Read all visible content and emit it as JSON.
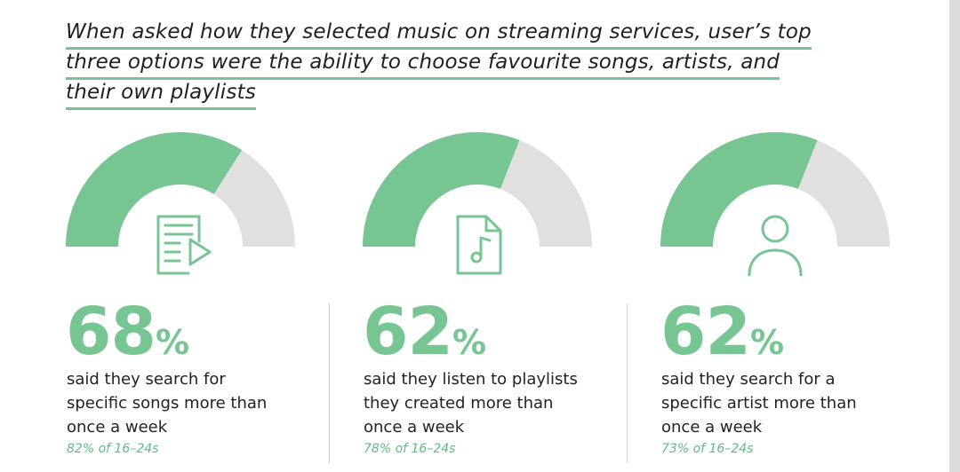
{
  "headline": {
    "lines": [
      "When asked how they selected music on streaming services, user’s top",
      "three options were the ability to choose favourite songs, artists, and",
      "their own playlists"
    ]
  },
  "colors": {
    "accent": "#78c594",
    "track": "#e2dfdf"
  },
  "chart_data": {
    "type": "gauge",
    "series": [
      {
        "value": 68,
        "value_label": "68",
        "unit": "%",
        "description": [
          "said they search for",
          "specific songs more than",
          "once a week"
        ],
        "subtext": "82% of 16–24s",
        "icon": "document-play-icon"
      },
      {
        "value": 62,
        "value_label": "62",
        "unit": "%",
        "description": [
          "said they listen to playlists",
          "they created more than",
          "once a week"
        ],
        "subtext": "78% of 16–24s",
        "icon": "music-file-icon"
      },
      {
        "value": 62,
        "value_label": "62",
        "unit": "%",
        "description": [
          "said they search for a",
          "specific artist more than",
          "once a week"
        ],
        "subtext": "73% of 16–24s",
        "icon": "user-icon"
      }
    ]
  }
}
